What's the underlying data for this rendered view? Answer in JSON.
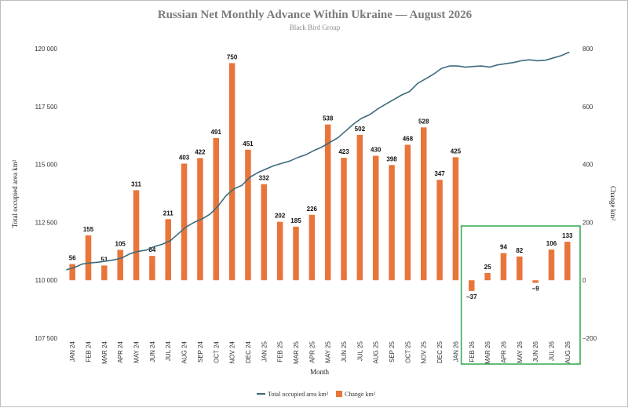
{
  "chart_data": {
    "type": "bar",
    "title": "Russian Net Monthly Advance Within Ukraine — August 2026",
    "subtitle": "Black Bird Group",
    "xlabel": "Month",
    "ylabel_left": "Total occupied area km²",
    "ylabel_right": "Change km²",
    "categories": [
      "JAN 24",
      "FEB 24",
      "MAR 24",
      "APR 24",
      "MAY 24",
      "JUN 24",
      "JUL 24",
      "AUG 24",
      "SEP 24",
      "OCT 24",
      "NOV 24",
      "DEC 24",
      "JAN 25",
      "FEB 25",
      "MAR 25",
      "APR 25",
      "MAY 25",
      "JUN 25",
      "JUL 25",
      "AUG 25",
      "SEP 25",
      "OCT 25",
      "NOV 25",
      "DEC 25",
      "JAN 26",
      "FEB 26",
      "MAR 26",
      "APR 26",
      "MAY 26",
      "JUN 26",
      "JUL 26",
      "AUG 26"
    ],
    "left_axis": {
      "ylim": [
        107500,
        120000
      ],
      "ticks": [
        107500,
        110000,
        112500,
        115000,
        117500,
        120000
      ],
      "tick_labels": [
        "107 500",
        "110 000",
        "112 500",
        "115 000",
        "117 500",
        "120 000"
      ]
    },
    "right_axis": {
      "ylim": [
        -200,
        800
      ],
      "ticks": [
        -200,
        0,
        200,
        400,
        600,
        800
      ],
      "tick_labels": [
        "−200",
        "0",
        "200",
        "400",
        "600",
        "800"
      ]
    },
    "series": [
      {
        "name": "Change km²",
        "type": "bar",
        "axis": "right",
        "color": "#e8763a",
        "values": [
          56,
          155,
          51,
          105,
          311,
          84,
          211,
          403,
          422,
          491,
          750,
          451,
          332,
          202,
          185,
          226,
          538,
          423,
          502,
          430,
          398,
          468,
          528,
          347,
          425,
          -37,
          25,
          94,
          82,
          -9,
          106,
          133
        ],
        "labels": [
          "56",
          "155",
          "51",
          "105",
          "311",
          "84",
          "211",
          "403",
          "422",
          "491",
          "750",
          "451",
          "332",
          "202",
          "185",
          "226",
          "538",
          "423",
          "502",
          "430",
          "398",
          "468",
          "528",
          "347",
          "425",
          "−37",
          "25",
          "94",
          "82",
          "−9",
          "106",
          "133"
        ]
      },
      {
        "name": "Total occupied area km²",
        "type": "line",
        "axis": "left",
        "color": "#3d6b7d",
        "x_start": "JAN 24",
        "points": [
          [
            0.0,
            110450
          ],
          [
            0.5,
            110550
          ],
          [
            1.0,
            110700
          ],
          [
            1.5,
            110750
          ],
          [
            2.0,
            110780
          ],
          [
            2.5,
            110830
          ],
          [
            3.0,
            110880
          ],
          [
            3.5,
            110970
          ],
          [
            4.0,
            111150
          ],
          [
            4.5,
            111250
          ],
          [
            5.0,
            111300
          ],
          [
            5.5,
            111450
          ],
          [
            6.0,
            111550
          ],
          [
            6.5,
            111700
          ],
          [
            7.0,
            112000
          ],
          [
            7.5,
            112300
          ],
          [
            8.0,
            112500
          ],
          [
            8.5,
            112650
          ],
          [
            9.0,
            112850
          ],
          [
            9.5,
            113200
          ],
          [
            10.0,
            113650
          ],
          [
            10.5,
            113950
          ],
          [
            11.0,
            114100
          ],
          [
            11.5,
            114450
          ],
          [
            12.0,
            114650
          ],
          [
            12.5,
            114800
          ],
          [
            13.0,
            114950
          ],
          [
            13.5,
            115050
          ],
          [
            14.0,
            115150
          ],
          [
            14.5,
            115300
          ],
          [
            15.0,
            115420
          ],
          [
            15.5,
            115600
          ],
          [
            16.0,
            115750
          ],
          [
            16.5,
            115950
          ],
          [
            17.0,
            116150
          ],
          [
            17.5,
            116450
          ],
          [
            18.0,
            116750
          ],
          [
            18.5,
            117000
          ],
          [
            19.0,
            117150
          ],
          [
            19.5,
            117400
          ],
          [
            20.0,
            117600
          ],
          [
            20.5,
            117800
          ],
          [
            21.0,
            118000
          ],
          [
            21.5,
            118150
          ],
          [
            22.0,
            118500
          ],
          [
            22.5,
            118700
          ],
          [
            23.0,
            118900
          ],
          [
            23.5,
            119150
          ],
          [
            24.0,
            119250
          ],
          [
            24.5,
            119250
          ],
          [
            25.0,
            119200
          ],
          [
            25.5,
            119230
          ],
          [
            26.0,
            119250
          ],
          [
            26.5,
            119200
          ],
          [
            27.0,
            119300
          ],
          [
            27.5,
            119350
          ],
          [
            28.0,
            119400
          ],
          [
            28.5,
            119480
          ],
          [
            29.0,
            119520
          ],
          [
            29.5,
            119480
          ],
          [
            30.0,
            119500
          ],
          [
            30.5,
            119600
          ],
          [
            31.0,
            119700
          ],
          [
            31.5,
            119850
          ]
        ]
      }
    ],
    "highlight": {
      "from": "FEB 26",
      "to": "AUG 26",
      "color": "#2ea84f"
    },
    "legend_position": "bottom-center",
    "grid": false
  }
}
